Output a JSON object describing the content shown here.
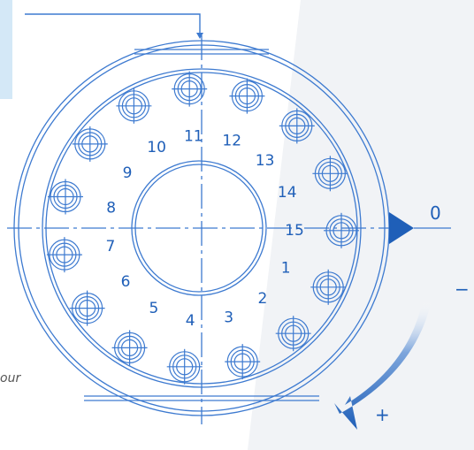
{
  "holes": [
    {
      "label": "11"
    },
    {
      "label": "12"
    },
    {
      "label": "13"
    },
    {
      "label": "14"
    },
    {
      "label": "15"
    },
    {
      "label": "1"
    },
    {
      "label": "2"
    },
    {
      "label": "3"
    },
    {
      "label": "4"
    },
    {
      "label": "5"
    },
    {
      "label": "6"
    },
    {
      "label": "7"
    },
    {
      "label": "8"
    },
    {
      "label": "9"
    },
    {
      "label": "10"
    }
  ],
  "zero_label": "0",
  "plus_label": "+",
  "minus_label": "−",
  "partial_text": "our",
  "colors": {
    "primary": "#1f5fb8",
    "line": "#3d7ad0",
    "panel": "#d4e8f7",
    "bg_shape": "#f1f3f6"
  }
}
